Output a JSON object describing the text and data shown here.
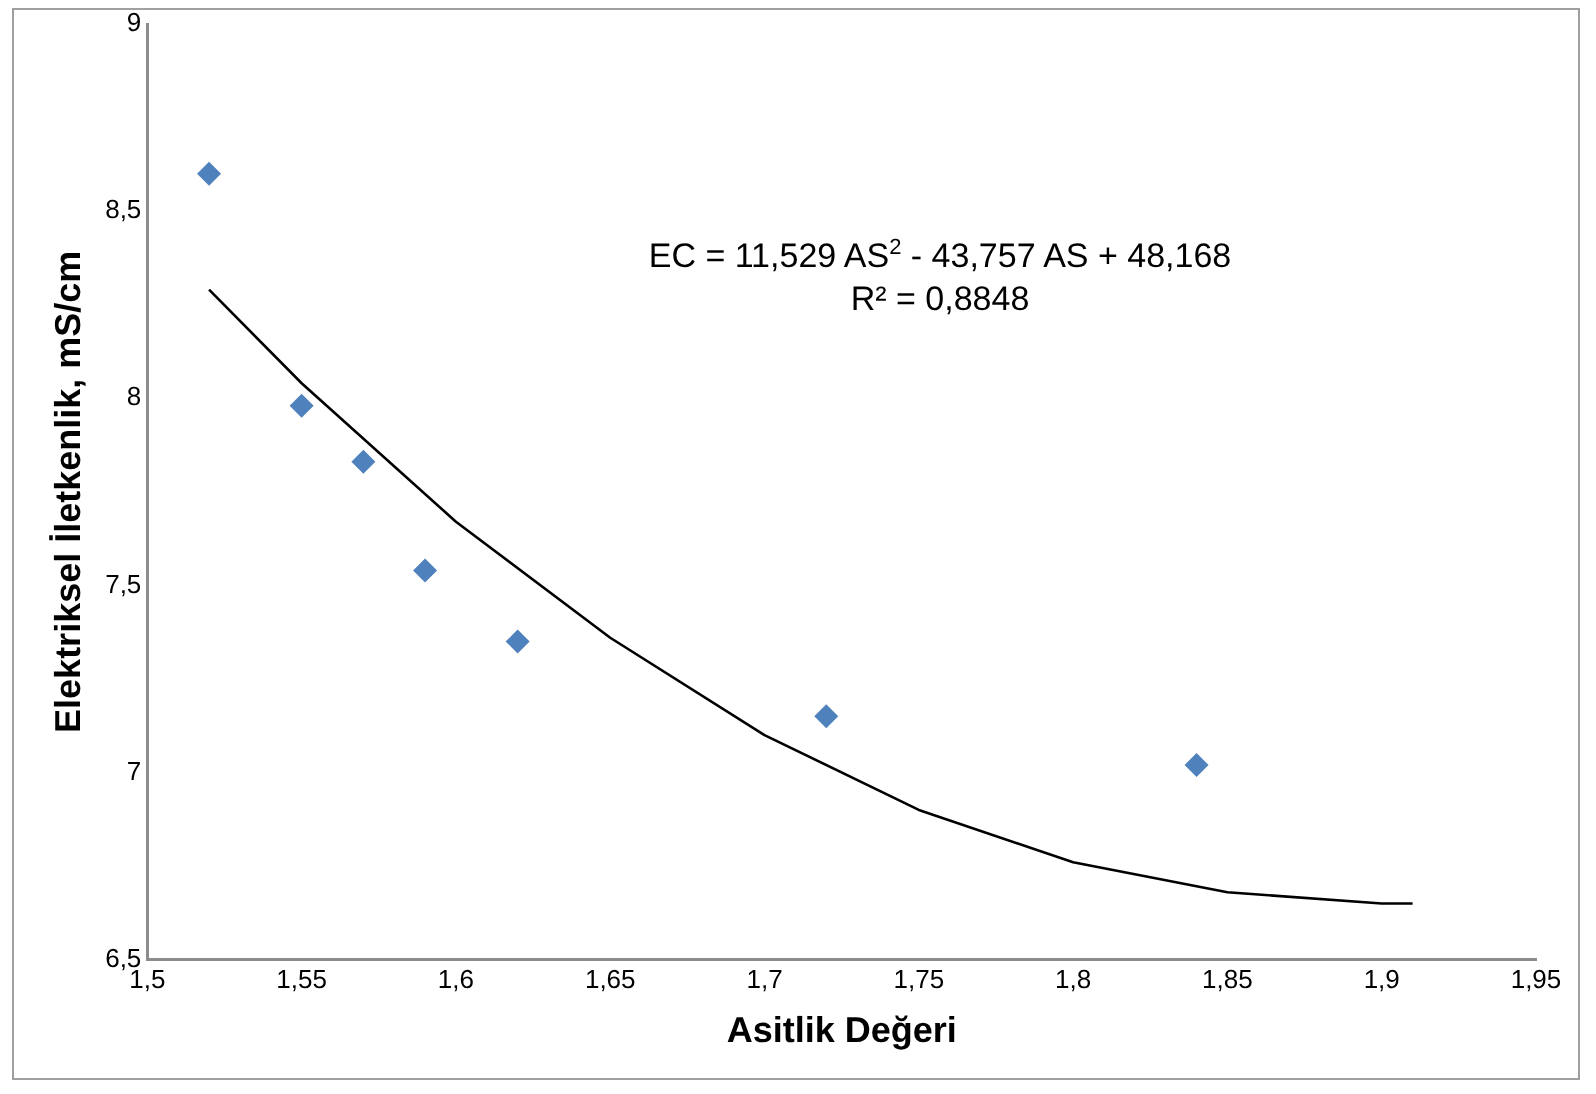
{
  "chart_data": {
    "type": "scatter",
    "xlabel": "Asitlik Değeri",
    "ylabel": "Elektriksel İletkenlik, mS/cm",
    "xlim": [
      1.5,
      1.95
    ],
    "xticks": [
      {
        "value": 1.5,
        "label": "1,5"
      },
      {
        "value": 1.55,
        "label": "1,55"
      },
      {
        "value": 1.6,
        "label": "1,6"
      },
      {
        "value": 1.65,
        "label": "1,65"
      },
      {
        "value": 1.7,
        "label": "1,7"
      },
      {
        "value": 1.75,
        "label": "1,75"
      },
      {
        "value": 1.8,
        "label": "1,8"
      },
      {
        "value": 1.85,
        "label": "1,85"
      },
      {
        "value": 1.9,
        "label": "1,9"
      },
      {
        "value": 1.95,
        "label": "1,95"
      }
    ],
    "ylim": [
      6.5,
      9
    ],
    "yticks": [
      {
        "value": 6.5,
        "label": "6,5"
      },
      {
        "value": 7,
        "label": "7"
      },
      {
        "value": 7.5,
        "label": "7,5"
      },
      {
        "value": 8,
        "label": "8"
      },
      {
        "value": 8.5,
        "label": "8,5"
      },
      {
        "value": 9,
        "label": "9"
      }
    ],
    "grid": false,
    "legend": false,
    "annotations": [
      "EC = 11,529 AS$^{2}$ - 43,757 AS + 48,168",
      "R² = 0,8848"
    ],
    "series": [
      {
        "marker": "diamond",
        "color": "#4f81bd",
        "x": [
          1.52,
          1.55,
          1.57,
          1.59,
          1.62,
          1.72,
          1.84
        ],
        "values": [
          8.6,
          7.98,
          7.83,
          7.54,
          7.35,
          7.15,
          7.02
        ]
      },
      {
        "type": "line",
        "marker": "none",
        "line_style": "solid",
        "color": "#000000",
        "x": [
          1.52,
          1.55,
          1.6,
          1.65,
          1.7,
          1.75,
          1.8,
          1.85,
          1.9,
          1.91
        ],
        "values": [
          8.29,
          8.04,
          7.67,
          7.36,
          7.1,
          6.9,
          6.76,
          6.68,
          6.65,
          6.65
        ]
      }
    ]
  }
}
